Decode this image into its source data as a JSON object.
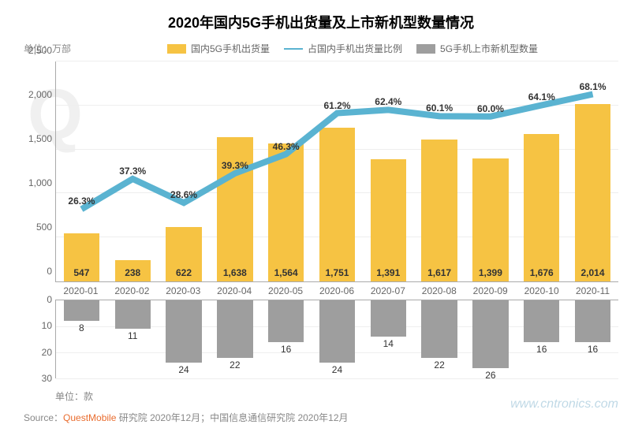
{
  "title": "2020年国内5G手机出货量及上市新机型数量情况",
  "title_fontsize": 18,
  "unit_top": "单位：万部",
  "unit_bottom": "单位：款",
  "unit_fontsize": 12,
  "legend": {
    "bar_top": "国内5G手机出货量",
    "line": "占国内手机出货量比例",
    "bar_bottom": "5G手机上市新机型数量",
    "fontsize": 12
  },
  "colors": {
    "bar_top": "#f6c343",
    "line": "#5ab3d1",
    "bar_bottom": "#9e9e9e",
    "text": "#333333",
    "muted": "#888888",
    "grid": "#eeeeee",
    "axis": "#aaaaaa",
    "background": "#ffffff",
    "source_highlight": "#e96c2e",
    "watermark": "#c0d9e6"
  },
  "top_chart": {
    "type": "bar+line",
    "categories": [
      "2020-01",
      "2020-02",
      "2020-03",
      "2020-04",
      "2020-05",
      "2020-06",
      "2020-07",
      "2020-08",
      "2020-09",
      "2020-10",
      "2020-11"
    ],
    "bar_values": [
      547,
      238,
      622,
      1638,
      1564,
      1751,
      1391,
      1617,
      1399,
      1676,
      2014
    ],
    "line_values_pct": [
      26.3,
      37.3,
      28.6,
      39.3,
      46.3,
      61.2,
      62.4,
      60.1,
      60.0,
      64.1,
      68.1
    ],
    "pct_labels": [
      "26.3%",
      "37.3%",
      "28.6%",
      "39.3%",
      "46.3%",
      "61.2%",
      "62.4%",
      "60.1%",
      "60.0%",
      "64.1%",
      "68.1%"
    ],
    "ylim": [
      0,
      2500
    ],
    "ytick_step": 500,
    "yticks": [
      "0",
      "500",
      "1,000",
      "1,500",
      "2,000",
      "2,500"
    ],
    "line_range_pct": [
      0,
      80
    ],
    "bar_labels": [
      "547",
      "238",
      "622",
      "1,638",
      "1,564",
      "1,751",
      "1,391",
      "1,617",
      "1,399",
      "1,676",
      "2,014"
    ],
    "bar_width": 0.7,
    "label_fontsize": 12,
    "line_width": 2
  },
  "bottom_chart": {
    "type": "bar-inverted",
    "values": [
      8,
      11,
      24,
      22,
      16,
      24,
      14,
      22,
      26,
      16,
      16
    ],
    "ylim": [
      0,
      30
    ],
    "ytick_step": 10,
    "yticks": [
      "0",
      "10",
      "20",
      "30"
    ],
    "bar_width": 0.7,
    "label_fontsize": 12
  },
  "source": {
    "prefix": "Source：",
    "highlight": "QuestMobile",
    "rest": " 研究院 2020年12月；中国信息通信研究院 2020年12月",
    "fontsize": 12
  },
  "watermark": "www.cntronics.com"
}
